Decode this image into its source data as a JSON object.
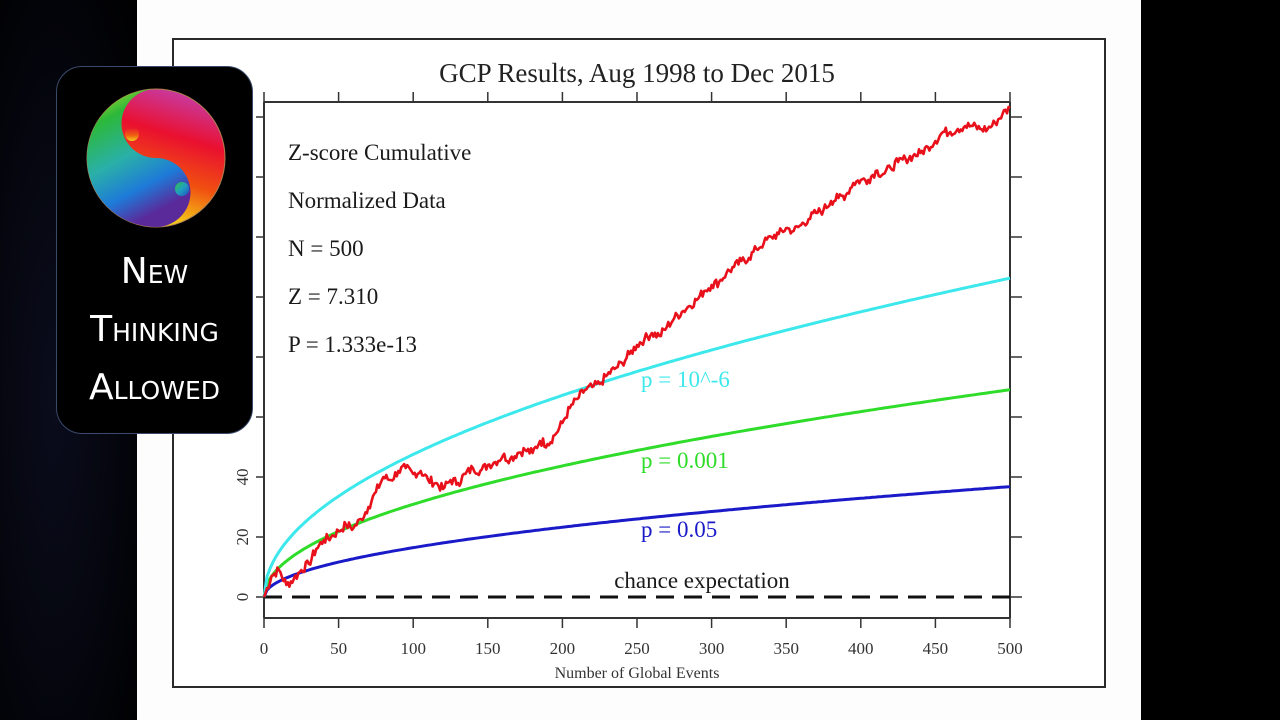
{
  "logo": {
    "lines": [
      "New",
      "Thinking",
      "Allowed"
    ],
    "icon": "yin-yang-rainbow-icon"
  },
  "chart_data": {
    "type": "line",
    "title": "GCP Results, Aug 1998 to Dec 2015",
    "xlabel": "Number of Global Events",
    "ylabel": "",
    "xlim": [
      0,
      500
    ],
    "ylim": [
      0,
      160
    ],
    "x_ticks": [
      0,
      50,
      100,
      150,
      200,
      250,
      300,
      350,
      400,
      450,
      500
    ],
    "y_ticks": [
      0,
      20,
      40,
      60,
      80,
      100,
      120,
      140,
      160
    ],
    "y_tick_labels_visible": [
      "0",
      "20",
      "40"
    ],
    "grid": false,
    "annotations": [
      "Z-score Cumulative",
      "Normalized Data",
      "N = 500",
      "Z = 7.310",
      "P = 1.333e-13"
    ],
    "series": [
      {
        "name": "Cumulative Z-score",
        "color": "#e8101a",
        "x": [
          0,
          5,
          10,
          15,
          20,
          25,
          30,
          35,
          40,
          45,
          50,
          55,
          60,
          65,
          70,
          75,
          80,
          85,
          90,
          95,
          100,
          105,
          110,
          115,
          120,
          125,
          130,
          135,
          140,
          145,
          150,
          155,
          160,
          165,
          170,
          175,
          180,
          185,
          190,
          195,
          200,
          205,
          210,
          215,
          220,
          225,
          230,
          235,
          240,
          245,
          250,
          255,
          260,
          265,
          270,
          275,
          280,
          285,
          290,
          295,
          300,
          305,
          310,
          315,
          320,
          325,
          330,
          335,
          340,
          345,
          350,
          355,
          360,
          365,
          370,
          375,
          380,
          385,
          390,
          395,
          400,
          405,
          410,
          415,
          420,
          425,
          430,
          435,
          440,
          445,
          450,
          455,
          460,
          465,
          470,
          475,
          480,
          485,
          490,
          495,
          500
        ],
        "y": [
          0,
          7,
          9,
          4,
          6,
          9,
          11,
          16,
          19,
          20,
          22,
          24,
          23,
          26,
          30,
          35,
          40,
          39,
          42,
          43,
          41,
          42,
          39,
          38,
          36,
          39,
          38,
          41,
          43,
          42,
          44,
          45,
          47,
          46,
          48,
          49,
          48,
          52,
          51,
          54,
          58,
          63,
          66,
          69,
          70,
          71,
          74,
          76,
          78,
          81,
          84,
          86,
          88,
          87,
          90,
          93,
          95,
          97,
          99,
          102,
          104,
          105,
          108,
          110,
          112,
          113,
          116,
          118,
          120,
          121,
          123,
          122,
          124,
          126,
          128,
          129,
          132,
          133,
          134,
          138,
          139,
          139,
          142,
          141,
          143,
          145,
          146,
          147,
          148,
          150,
          152,
          155,
          155,
          156,
          157,
          157,
          156,
          156,
          158,
          161,
          163
        ]
      },
      {
        "name": "p = 10^-6",
        "color": "#3ce8ec",
        "formula": "4.753*sqrt(n)"
      },
      {
        "name": "p = 0.001",
        "color": "#2fdc2a",
        "formula": "3.090*sqrt(n)"
      },
      {
        "name": "p = 0.05",
        "color": "#1a1ac8",
        "formula": "1.645*sqrt(n)"
      },
      {
        "name": "chance expectation",
        "color": "#111111",
        "style": "dashed",
        "formula": "0"
      }
    ],
    "curve_labels": [
      {
        "text": "p = 10^-6",
        "color": "#3ce8ec",
        "at": [
          250,
          70
        ]
      },
      {
        "text": "p = 0.001",
        "color": "#2fdc2a",
        "at": [
          250,
          43
        ]
      },
      {
        "text": "p = 0.05",
        "color": "#1a1ac8",
        "at": [
          250,
          20
        ]
      },
      {
        "text": "chance expectation",
        "color": "#111111",
        "at": [
          225,
          3
        ]
      }
    ]
  }
}
